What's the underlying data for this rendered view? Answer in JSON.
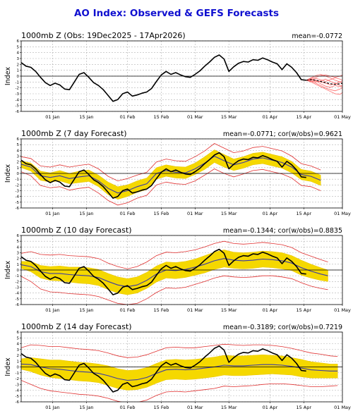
{
  "title": "AO Index: Observed & GEFS Forecasts",
  "colors": {
    "title": "#1010d0",
    "observed": "#000000",
    "ensemble_mean": "#3a3aa8",
    "band": "#f5d800",
    "band_edge": "#e8c400",
    "extreme": "#e03030",
    "members": "#ff5050"
  },
  "x_axis": {
    "domain": [
      0,
      133
    ],
    "ticks": [
      {
        "label": "01 Jan",
        "x": 13
      },
      {
        "label": "15 Jan",
        "x": 27
      },
      {
        "label": "01 Feb",
        "x": 44
      },
      {
        "label": "15 Feb",
        "x": 58
      },
      {
        "label": "01 Mar",
        "x": 72
      },
      {
        "label": "15 Mar",
        "x": 86
      },
      {
        "label": "01 Apr",
        "x": 103
      },
      {
        "label": "15 Apr",
        "x": 117
      },
      {
        "label": "01 May",
        "x": 133
      }
    ]
  },
  "y_axis": {
    "label": "Index",
    "range": [
      -6,
      6
    ],
    "ticks": [
      -6,
      -5,
      -4,
      -3,
      -2,
      -1,
      0,
      1,
      2,
      3,
      4,
      5,
      6
    ]
  },
  "chart_data": [
    {
      "type": "line",
      "panel_title": "1000mb Z (Obs: 19Dec2025 - 17Apr2026)",
      "stat": "mean=-0.0772",
      "grid": true,
      "observed": {
        "x": [
          0,
          2,
          4,
          6,
          8,
          10,
          12,
          14,
          16,
          18,
          20,
          22,
          24,
          26,
          28,
          30,
          32,
          34,
          36,
          38,
          40,
          42,
          44,
          46,
          48,
          50,
          52,
          54,
          56,
          58,
          60,
          62,
          64,
          66,
          68,
          70,
          72,
          74,
          76,
          78,
          80,
          82,
          84,
          86,
          88,
          90,
          92,
          94,
          96,
          98,
          100,
          102,
          104,
          106,
          108,
          110,
          112,
          114,
          116,
          118
        ],
        "y": [
          2.3,
          1.7,
          1.5,
          0.8,
          -0.2,
          -1.1,
          -1.6,
          -1.2,
          -1.5,
          -2.2,
          -2.3,
          -1.0,
          0.3,
          0.6,
          -0.2,
          -1.1,
          -1.6,
          -2.3,
          -3.3,
          -4.3,
          -4.0,
          -3.0,
          -2.7,
          -3.4,
          -3.2,
          -2.9,
          -2.7,
          -2.1,
          -0.9,
          0.2,
          0.8,
          0.3,
          0.6,
          0.2,
          -0.1,
          -0.2,
          0.3,
          0.9,
          1.7,
          2.4,
          3.2,
          3.6,
          2.9,
          0.8,
          1.6,
          2.2,
          2.5,
          2.4,
          2.8,
          2.7,
          3.1,
          2.8,
          2.4,
          2.1,
          1.1,
          2.1,
          1.5,
          0.6,
          -0.6,
          -0.7
        ]
      },
      "forecast_members": [
        {
          "x": [
            118,
            120,
            122,
            124,
            126,
            128,
            130,
            132,
            133
          ],
          "y": [
            -0.7,
            -0.4,
            -0.2,
            0.1,
            0.2,
            0.0,
            -0.2,
            0.0,
            0.2
          ]
        },
        {
          "x": [
            118,
            120,
            122,
            124,
            126,
            128,
            130,
            132,
            133
          ],
          "y": [
            -0.7,
            -0.8,
            -1.2,
            -1.6,
            -2.0,
            -2.3,
            -2.5,
            -2.2,
            -2.0
          ]
        },
        {
          "x": [
            118,
            120,
            122,
            124,
            126,
            128,
            130,
            132,
            133
          ],
          "y": [
            -0.7,
            -0.5,
            -0.7,
            -1.0,
            -1.2,
            -1.5,
            -1.3,
            -1.0,
            -1.2
          ]
        },
        {
          "x": [
            118,
            120,
            122,
            124,
            126,
            128,
            130,
            132,
            133
          ],
          "y": [
            -0.7,
            -0.6,
            -0.4,
            -0.6,
            -0.9,
            -0.6,
            -0.3,
            -0.5,
            -0.7
          ]
        },
        {
          "x": [
            118,
            120,
            122,
            124,
            126,
            128,
            130,
            132,
            133
          ],
          "y": [
            -0.7,
            -1.0,
            -1.4,
            -1.8,
            -2.2,
            -2.6,
            -3.0,
            -3.1,
            -2.8
          ]
        },
        {
          "x": [
            118,
            120,
            122,
            124,
            126,
            128,
            130,
            132,
            133
          ],
          "y": [
            -0.7,
            -0.3,
            0.1,
            0.3,
            0.0,
            -0.3,
            -0.7,
            -1.0,
            -0.8
          ]
        },
        {
          "x": [
            118,
            120,
            122,
            124,
            126,
            128,
            130,
            132,
            133
          ],
          "y": [
            -0.7,
            -0.9,
            -0.8,
            -1.3,
            -1.7,
            -1.9,
            -1.6,
            -1.8,
            -1.5
          ]
        },
        {
          "x": [
            118,
            120,
            122,
            124,
            126,
            128,
            130,
            132,
            133
          ],
          "y": [
            -0.7,
            -0.6,
            -1.0,
            -0.8,
            -0.5,
            -0.9,
            -1.2,
            -1.6,
            -1.9
          ]
        }
      ],
      "forecast_mean": {
        "x": [
          118,
          120,
          122,
          124,
          126,
          128,
          130,
          132,
          133
        ],
        "y": [
          -0.7,
          -0.6,
          -0.7,
          -0.9,
          -1.1,
          -1.3,
          -1.4,
          -1.3,
          -1.2
        ]
      }
    },
    {
      "type": "area",
      "panel_title": "1000mb Z (7 day Forecast)",
      "stat": "mean=-0.0771; cor(w/obs)=0.9621",
      "grid": true,
      "x": [
        0,
        4,
        8,
        12,
        16,
        20,
        24,
        28,
        32,
        36,
        40,
        44,
        48,
        52,
        56,
        60,
        64,
        68,
        72,
        76,
        80,
        84,
        88,
        92,
        96,
        100,
        104,
        108,
        112,
        116,
        120,
        124
      ],
      "band_center": [
        1.6,
        1.1,
        -0.4,
        -0.7,
        -0.4,
        -0.9,
        -0.6,
        -0.4,
        -1.3,
        -2.6,
        -3.4,
        -3.0,
        -2.3,
        -1.8,
        0.0,
        0.5,
        0.2,
        0.1,
        0.8,
        1.8,
        3.0,
        2.2,
        1.5,
        1.9,
        2.5,
        2.7,
        2.3,
        1.9,
        1.1,
        -0.2,
        -0.5,
        -1.2
      ],
      "band_halfwidth": [
        0.6,
        0.7,
        0.8,
        0.8,
        0.9,
        0.9,
        1.0,
        1.0,
        1.0,
        1.1,
        1.1,
        1.0,
        1.0,
        1.0,
        1.0,
        1.0,
        1.0,
        1.0,
        1.0,
        1.1,
        1.1,
        1.1,
        1.0,
        1.0,
        1.0,
        1.0,
        1.0,
        1.0,
        1.0,
        0.9,
        0.9,
        0.9
      ],
      "outer_halfwidth": [
        1.3,
        1.5,
        1.7,
        1.8,
        1.9,
        2.0,
        2.0,
        2.0,
        2.1,
        2.1,
        2.1,
        2.1,
        2.0,
        2.0,
        2.0,
        2.0,
        2.0,
        2.0,
        2.1,
        2.1,
        2.2,
        2.2,
        2.1,
        2.0,
        2.0,
        2.0,
        2.0,
        2.0,
        1.9,
        1.9,
        1.8,
        1.8
      ],
      "observed": {
        "x": [
          0,
          2,
          4,
          6,
          8,
          10,
          12,
          14,
          16,
          18,
          20,
          22,
          24,
          26,
          28,
          30,
          32,
          34,
          36,
          38,
          40,
          42,
          44,
          46,
          48,
          50,
          52,
          54,
          56,
          58,
          60,
          62,
          64,
          66,
          68,
          70,
          72,
          74,
          76,
          78,
          80,
          82,
          84,
          86,
          88,
          90,
          92,
          94,
          96,
          98,
          100,
          102,
          104,
          106,
          108,
          110,
          112,
          114,
          116,
          118
        ],
        "y": [
          2.3,
          1.7,
          1.5,
          0.8,
          -0.2,
          -1.1,
          -1.6,
          -1.2,
          -1.5,
          -2.2,
          -2.3,
          -1.0,
          0.3,
          0.6,
          -0.2,
          -1.1,
          -1.6,
          -2.3,
          -3.3,
          -4.3,
          -4.0,
          -3.0,
          -2.7,
          -3.4,
          -3.2,
          -2.9,
          -2.7,
          -2.1,
          -0.9,
          0.2,
          0.8,
          0.3,
          0.6,
          0.2,
          -0.1,
          -0.2,
          0.3,
          0.9,
          1.7,
          2.4,
          3.2,
          3.6,
          2.9,
          0.8,
          1.6,
          2.2,
          2.5,
          2.4,
          2.8,
          2.7,
          3.1,
          2.8,
          2.4,
          2.1,
          1.1,
          2.1,
          1.5,
          0.6,
          -0.6,
          -0.7
        ]
      }
    },
    {
      "type": "area",
      "panel_title": "1000mb Z (10 day Forecast)",
      "stat": "mean=-0.1344; cor(w/obs)=0.8835",
      "grid": true,
      "x": [
        0,
        4,
        8,
        12,
        16,
        20,
        24,
        28,
        32,
        36,
        40,
        44,
        48,
        52,
        56,
        60,
        64,
        68,
        72,
        76,
        80,
        84,
        88,
        92,
        96,
        100,
        104,
        108,
        112,
        116,
        120,
        124,
        127
      ],
      "band_center": [
        0.9,
        0.6,
        -0.3,
        -0.6,
        -0.6,
        -0.8,
        -0.9,
        -1.0,
        -1.3,
        -2.0,
        -2.6,
        -2.9,
        -2.6,
        -1.8,
        -0.7,
        0.0,
        -0.1,
        0.1,
        0.5,
        1.0,
        1.6,
        2.0,
        1.7,
        1.6,
        1.7,
        1.9,
        1.8,
        1.6,
        1.2,
        0.4,
        -0.2,
        -0.7,
        -1.0
      ],
      "band_halfwidth": [
        0.6,
        0.9,
        1.1,
        1.2,
        1.3,
        1.3,
        1.4,
        1.4,
        1.4,
        1.4,
        1.4,
        1.4,
        1.4,
        1.4,
        1.4,
        1.4,
        1.4,
        1.4,
        1.4,
        1.5,
        1.5,
        1.5,
        1.4,
        1.4,
        1.4,
        1.4,
        1.4,
        1.4,
        1.3,
        1.3,
        1.2,
        1.1,
        1.0
      ],
      "outer_halfwidth": [
        2.0,
        2.6,
        3.0,
        3.2,
        3.3,
        3.3,
        3.3,
        3.3,
        3.3,
        3.2,
        3.2,
        3.1,
        3.2,
        3.2,
        3.2,
        3.1,
        3.1,
        3.1,
        3.0,
        3.0,
        3.0,
        3.0,
        2.9,
        2.9,
        2.9,
        2.9,
        2.8,
        2.8,
        2.7,
        2.6,
        2.6,
        2.5,
        2.4
      ],
      "observed": {
        "x": [
          0,
          2,
          4,
          6,
          8,
          10,
          12,
          14,
          16,
          18,
          20,
          22,
          24,
          26,
          28,
          30,
          32,
          34,
          36,
          38,
          40,
          42,
          44,
          46,
          48,
          50,
          52,
          54,
          56,
          58,
          60,
          62,
          64,
          66,
          68,
          70,
          72,
          74,
          76,
          78,
          80,
          82,
          84,
          86,
          88,
          90,
          92,
          94,
          96,
          98,
          100,
          102,
          104,
          106,
          108,
          110,
          112,
          114,
          116,
          118
        ],
        "y": [
          2.3,
          1.7,
          1.5,
          0.8,
          -0.2,
          -1.1,
          -1.6,
          -1.2,
          -1.5,
          -2.2,
          -2.3,
          -1.0,
          0.3,
          0.6,
          -0.2,
          -1.1,
          -1.6,
          -2.3,
          -3.3,
          -4.3,
          -4.0,
          -3.0,
          -2.7,
          -3.4,
          -3.2,
          -2.9,
          -2.7,
          -2.1,
          -0.9,
          0.2,
          0.8,
          0.3,
          0.6,
          0.2,
          -0.1,
          -0.2,
          0.3,
          0.9,
          1.7,
          2.4,
          3.2,
          3.6,
          2.9,
          0.8,
          1.6,
          2.2,
          2.5,
          2.4,
          2.8,
          2.7,
          3.1,
          2.8,
          2.4,
          2.1,
          1.1,
          2.1,
          1.5,
          0.6,
          -0.6,
          -0.7
        ]
      }
    },
    {
      "type": "area",
      "panel_title": "1000mb Z (14 day Forecast)",
      "stat": "mean=-0.3189; cor(w/obs)=0.7219",
      "grid": true,
      "x": [
        0,
        4,
        8,
        12,
        16,
        20,
        24,
        28,
        32,
        36,
        40,
        44,
        48,
        52,
        56,
        60,
        64,
        68,
        72,
        76,
        80,
        84,
        88,
        92,
        96,
        100,
        104,
        108,
        112,
        116,
        120,
        124,
        128,
        131
      ],
      "band_center": [
        0.5,
        0.4,
        0.0,
        -0.3,
        -0.4,
        -0.6,
        -0.8,
        -0.9,
        -1.1,
        -1.5,
        -2.0,
        -2.3,
        -2.2,
        -1.8,
        -1.1,
        -0.5,
        -0.4,
        -0.5,
        -0.4,
        -0.2,
        0.0,
        0.3,
        0.2,
        0.2,
        0.3,
        0.4,
        0.4,
        0.3,
        0.1,
        -0.2,
        -0.5,
        -0.6,
        -0.7,
        -0.7
      ],
      "band_halfwidth": [
        0.9,
        1.2,
        1.4,
        1.5,
        1.6,
        1.6,
        1.6,
        1.6,
        1.6,
        1.7,
        1.7,
        1.7,
        1.7,
        1.7,
        1.7,
        1.7,
        1.7,
        1.7,
        1.7,
        1.7,
        1.7,
        1.7,
        1.7,
        1.7,
        1.7,
        1.7,
        1.6,
        1.6,
        1.5,
        1.5,
        1.4,
        1.3,
        1.2,
        1.2
      ],
      "outer_halfwidth": [
        2.8,
        3.4,
        3.7,
        3.8,
        3.9,
        3.9,
        3.9,
        3.9,
        3.9,
        3.9,
        3.9,
        3.9,
        3.9,
        3.9,
        3.8,
        3.8,
        3.8,
        3.8,
        3.7,
        3.7,
        3.7,
        3.6,
        3.6,
        3.5,
        3.5,
        3.4,
        3.3,
        3.2,
        3.1,
        3.0,
        2.9,
        2.8,
        2.6,
        2.5
      ],
      "observed": {
        "x": [
          0,
          2,
          4,
          6,
          8,
          10,
          12,
          14,
          16,
          18,
          20,
          22,
          24,
          26,
          28,
          30,
          32,
          34,
          36,
          38,
          40,
          42,
          44,
          46,
          48,
          50,
          52,
          54,
          56,
          58,
          60,
          62,
          64,
          66,
          68,
          70,
          72,
          74,
          76,
          78,
          80,
          82,
          84,
          86,
          88,
          90,
          92,
          94,
          96,
          98,
          100,
          102,
          104,
          106,
          108,
          110,
          112,
          114,
          116,
          118
        ],
        "y": [
          2.3,
          1.7,
          1.5,
          0.8,
          -0.2,
          -1.1,
          -1.6,
          -1.2,
          -1.5,
          -2.2,
          -2.3,
          -1.0,
          0.3,
          0.6,
          -0.2,
          -1.1,
          -1.6,
          -2.3,
          -3.3,
          -4.3,
          -4.0,
          -3.0,
          -2.7,
          -3.4,
          -3.2,
          -2.9,
          -2.7,
          -2.1,
          -0.9,
          0.2,
          0.8,
          0.3,
          0.6,
          0.2,
          -0.1,
          -0.2,
          0.3,
          0.9,
          1.7,
          2.4,
          3.2,
          3.6,
          2.9,
          0.8,
          1.6,
          2.2,
          2.5,
          2.4,
          2.8,
          2.7,
          3.1,
          2.8,
          2.4,
          2.1,
          1.1,
          2.1,
          1.5,
          0.6,
          -0.6,
          -0.7
        ]
      }
    }
  ]
}
